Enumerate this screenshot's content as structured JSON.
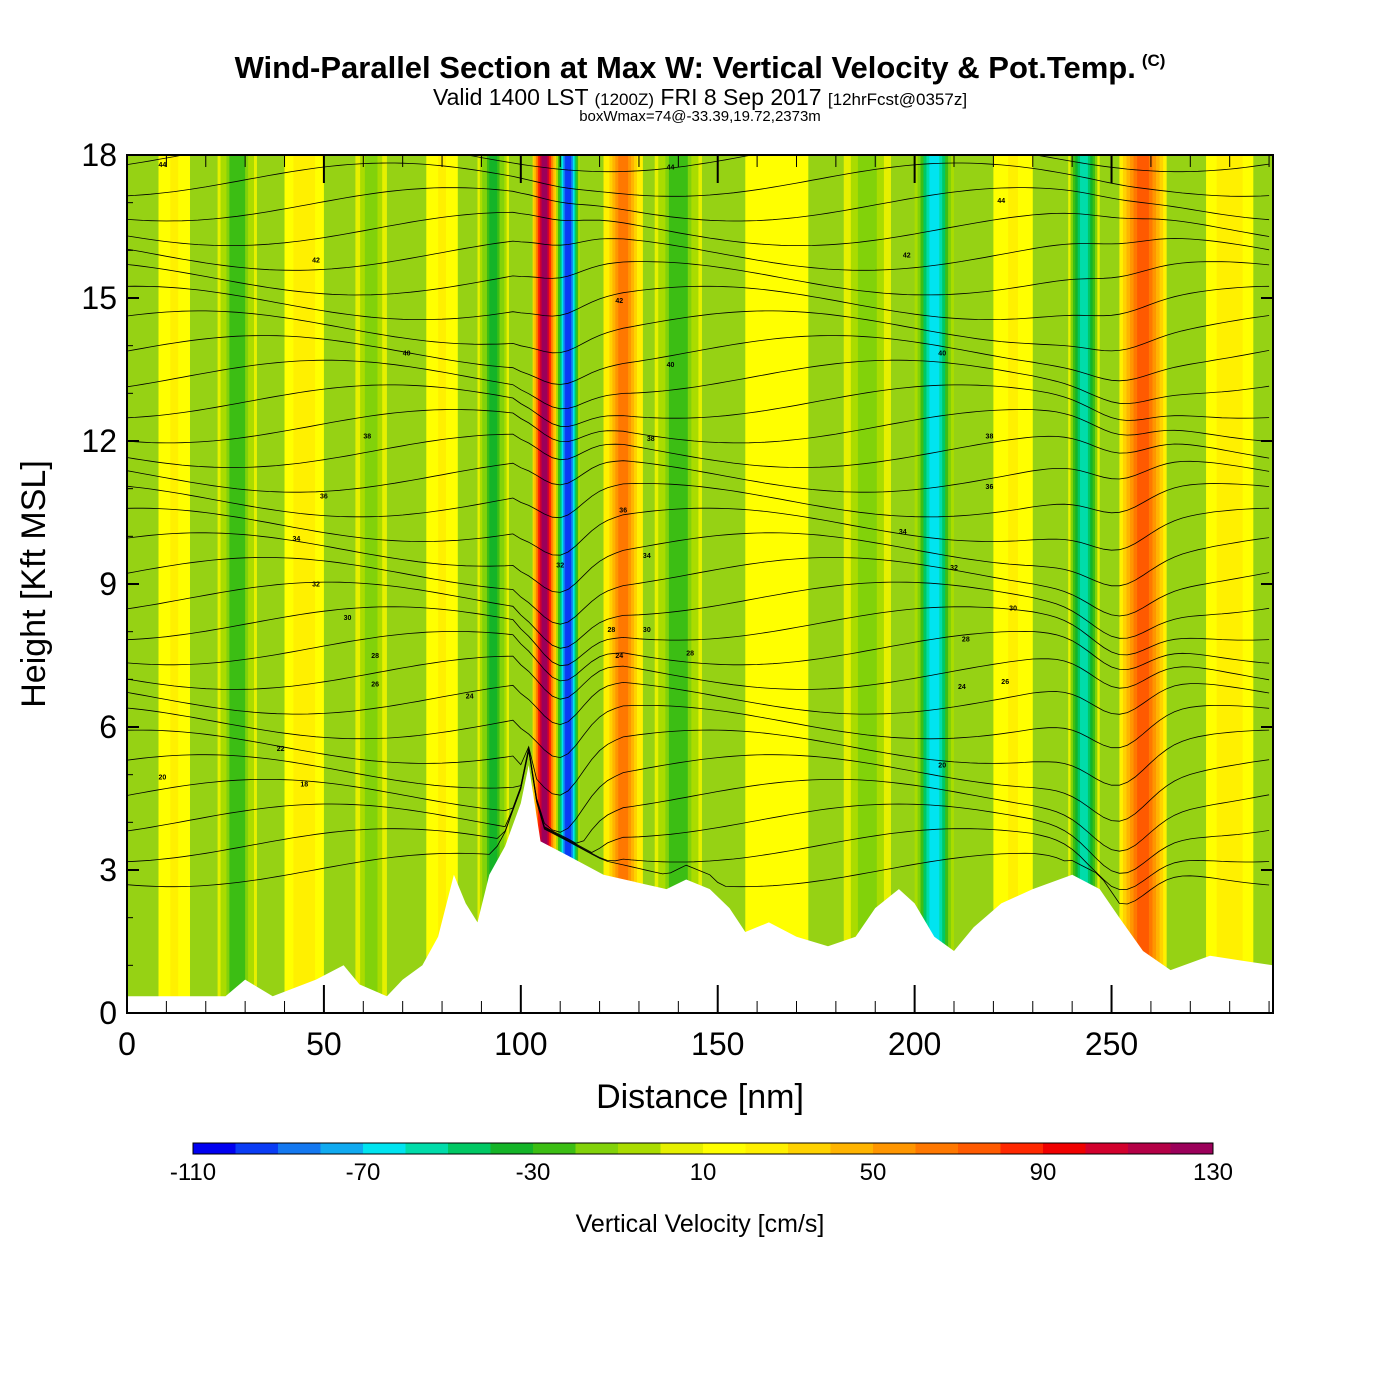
{
  "chart_data": {
    "type": "heatmap",
    "title": "Wind-Parallel Section at Max W: Vertical Velocity & Pot.Temp.",
    "copyright_mark": "(C)",
    "subtitle_valid": "Valid 1400 LST",
    "subtitle_utc": "(1200Z)",
    "subtitle_date": "FRI 8 Sep 2017",
    "subtitle_fcst": "[12hrFcst@0357z]",
    "subtitle2": "boxWmax=74@-33.39,19.72,2373m",
    "xlabel": "Distance [nm]",
    "ylabel": "Height [Kft MSL]",
    "xlim": [
      0,
      291
    ],
    "ylim": [
      0,
      18
    ],
    "xticks": [
      "0",
      "50",
      "100",
      "150",
      "200",
      "250"
    ],
    "xtick_values": [
      0,
      50,
      100,
      150,
      200,
      250
    ],
    "yticks": [
      "0",
      "3",
      "6",
      "9",
      "12",
      "15",
      "18"
    ],
    "ytick_values": [
      0,
      3,
      6,
      9,
      12,
      15,
      18
    ],
    "colorbar_title": "Vertical Velocity [cm/s]",
    "colorbar_levels": [
      -110,
      -100,
      -90,
      -80,
      -70,
      -60,
      -50,
      -40,
      -30,
      -20,
      -10,
      0,
      10,
      20,
      30,
      40,
      50,
      60,
      70,
      80,
      90,
      100,
      110,
      120,
      130
    ],
    "colorbar_tick_labels": [
      "-110",
      "-70",
      "-30",
      "10",
      "50",
      "90",
      "130"
    ],
    "colorbar_tick_values": [
      -110,
      -70,
      -30,
      10,
      50,
      90,
      130
    ],
    "colorbar_colors": [
      "#0000f0",
      "#0a3cf5",
      "#1478f0",
      "#10aaf0",
      "#00e4f0",
      "#00dcaa",
      "#00c864",
      "#14b428",
      "#3cbe14",
      "#82d20a",
      "#aadc00",
      "#e6f000",
      "#ffff00",
      "#fff000",
      "#ffd200",
      "#ffb400",
      "#ff9600",
      "#ff7800",
      "#ff5a00",
      "#ff2800",
      "#f00000",
      "#d2002d",
      "#b40046",
      "#9b005a"
    ],
    "field_background": "#96d214",
    "velocity_columns": [
      {
        "x": 12,
        "peak": 20,
        "width": 4
      },
      {
        "x": 28,
        "peak": -30,
        "width": 5
      },
      {
        "x": 45,
        "peak": 25,
        "width": 5
      },
      {
        "x": 62,
        "peak": -20,
        "width": 4
      },
      {
        "x": 80,
        "peak": 20,
        "width": 4
      },
      {
        "x": 93,
        "peak": -35,
        "width": 4
      },
      {
        "x": 106,
        "peak": 120,
        "width": 3
      },
      {
        "x": 112,
        "peak": -100,
        "width": 3
      },
      {
        "x": 126,
        "peak": 60,
        "width": 5
      },
      {
        "x": 140,
        "peak": -30,
        "width": 6
      },
      {
        "x": 165,
        "peak": 15,
        "width": 8
      },
      {
        "x": 188,
        "peak": -20,
        "width": 6
      },
      {
        "x": 205,
        "peak": -70,
        "width": 5
      },
      {
        "x": 225,
        "peak": 20,
        "width": 5
      },
      {
        "x": 243,
        "peak": -60,
        "width": 4
      },
      {
        "x": 258,
        "peak": 70,
        "width": 6
      },
      {
        "x": 280,
        "peak": 25,
        "width": 6
      }
    ],
    "terrain_height_kft": [
      [
        0,
        0.35
      ],
      [
        25,
        0.35
      ],
      [
        30,
        0.7
      ],
      [
        37,
        0.35
      ],
      [
        48,
        0.7
      ],
      [
        55,
        1.0
      ],
      [
        59,
        0.6
      ],
      [
        66,
        0.35
      ],
      [
        70,
        0.7
      ],
      [
        75,
        1.0
      ],
      [
        79,
        1.6
      ],
      [
        83,
        2.9
      ],
      [
        86,
        2.3
      ],
      [
        89,
        1.9
      ],
      [
        92,
        2.9
      ],
      [
        96,
        3.5
      ],
      [
        100,
        4.4
      ],
      [
        102,
        5.2
      ],
      [
        105,
        3.6
      ],
      [
        112,
        3.3
      ],
      [
        121,
        2.9
      ],
      [
        137,
        2.6
      ],
      [
        142,
        2.8
      ],
      [
        148,
        2.6
      ],
      [
        153,
        2.2
      ],
      [
        157,
        1.7
      ],
      [
        163,
        1.9
      ],
      [
        170,
        1.6
      ],
      [
        178,
        1.4
      ],
      [
        185,
        1.6
      ],
      [
        190,
        2.2
      ],
      [
        196,
        2.6
      ],
      [
        200,
        2.3
      ],
      [
        205,
        1.6
      ],
      [
        210,
        1.3
      ],
      [
        215,
        1.8
      ],
      [
        222,
        2.3
      ],
      [
        230,
        2.6
      ],
      [
        240,
        2.9
      ],
      [
        247,
        2.6
      ],
      [
        252,
        2.0
      ],
      [
        258,
        1.3
      ],
      [
        265,
        0.9
      ],
      [
        275,
        1.2
      ],
      [
        283,
        1.1
      ],
      [
        291,
        1.0
      ]
    ],
    "theta_isentropes": {
      "interval_k": 1,
      "min_k": 15,
      "max_k": 44,
      "labels": [
        {
          "text": "44",
          "x": 9,
          "y": 17.8
        },
        {
          "text": "44",
          "x": 138,
          "y": 17.75
        },
        {
          "text": "44",
          "x": 222,
          "y": 17.05
        },
        {
          "text": "42",
          "x": 48,
          "y": 15.8
        },
        {
          "text": "42",
          "x": 125,
          "y": 14.95
        },
        {
          "text": "42",
          "x": 198,
          "y": 15.9
        },
        {
          "text": "40",
          "x": 71,
          "y": 13.85
        },
        {
          "text": "40",
          "x": 138,
          "y": 13.6
        },
        {
          "text": "40",
          "x": 207,
          "y": 13.85
        },
        {
          "text": "38",
          "x": 61,
          "y": 12.1
        },
        {
          "text": "38",
          "x": 133,
          "y": 12.05
        },
        {
          "text": "38",
          "x": 219,
          "y": 12.1
        },
        {
          "text": "36",
          "x": 50,
          "y": 10.85
        },
        {
          "text": "36",
          "x": 126,
          "y": 10.55
        },
        {
          "text": "36",
          "x": 219,
          "y": 11.05
        },
        {
          "text": "34",
          "x": 43,
          "y": 9.95
        },
        {
          "text": "34",
          "x": 132,
          "y": 9.6
        },
        {
          "text": "34",
          "x": 197,
          "y": 10.1
        },
        {
          "text": "32",
          "x": 48,
          "y": 9.0
        },
        {
          "text": "32",
          "x": 110,
          "y": 9.4
        },
        {
          "text": "32",
          "x": 210,
          "y": 9.35
        },
        {
          "text": "30",
          "x": 56,
          "y": 8.3
        },
        {
          "text": "30",
          "x": 132,
          "y": 8.05
        },
        {
          "text": "30",
          "x": 225,
          "y": 8.5
        },
        {
          "text": "28",
          "x": 63,
          "y": 7.5
        },
        {
          "text": "28",
          "x": 123,
          "y": 8.05
        },
        {
          "text": "28",
          "x": 143,
          "y": 7.55
        },
        {
          "text": "28",
          "x": 213,
          "y": 7.85
        },
        {
          "text": "26",
          "x": 63,
          "y": 6.9
        },
        {
          "text": "26",
          "x": 223,
          "y": 6.95
        },
        {
          "text": "24",
          "x": 87,
          "y": 6.65
        },
        {
          "text": "24",
          "x": 125,
          "y": 7.5
        },
        {
          "text": "24",
          "x": 212,
          "y": 6.85
        },
        {
          "text": "22",
          "x": 39,
          "y": 5.55
        },
        {
          "text": "20",
          "x": 9,
          "y": 4.95
        },
        {
          "text": "20",
          "x": 207,
          "y": 5.2
        },
        {
          "text": "18",
          "x": 45,
          "y": 4.8
        }
      ]
    }
  }
}
